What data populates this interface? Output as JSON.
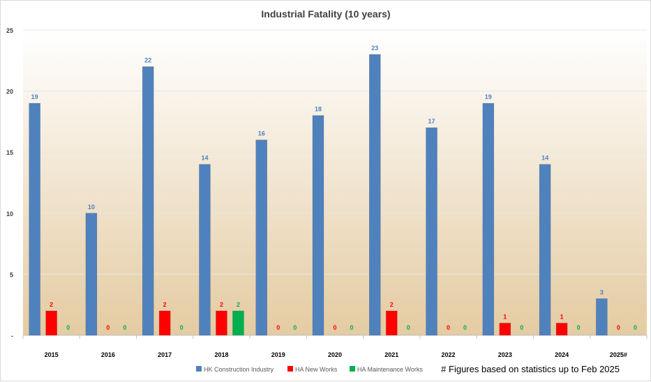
{
  "chart_data": {
    "type": "bar",
    "title": "Industrial Fatality (10 years)",
    "xlabel": "",
    "ylabel": "",
    "ylim": [
      0,
      25
    ],
    "yticks": [
      "-",
      "5",
      "10",
      "15",
      "20",
      "25"
    ],
    "grid": true,
    "legend_position": "bottom",
    "categories": [
      "2015",
      "2016",
      "2017",
      "2018",
      "2019",
      "2020",
      "2021",
      "2022",
      "2023",
      "2024",
      "2025#"
    ],
    "series": [
      {
        "name": "HK Construction Industry",
        "color": "#4f81bd",
        "label_color": "#4f81bd",
        "values": [
          19,
          10,
          22,
          14,
          16,
          18,
          23,
          17,
          19,
          14,
          3
        ],
        "labels": [
          "19",
          "10",
          "22",
          "14",
          "16",
          "18",
          "23",
          "17",
          "19",
          "14",
          "3"
        ]
      },
      {
        "name": "HA New Works",
        "color": "#ff0000",
        "label_color": "#ff0000",
        "values": [
          2,
          null,
          2,
          2,
          null,
          null,
          2,
          null,
          1,
          1,
          null
        ],
        "labels": [
          "2",
          "0",
          "2",
          "2",
          "0",
          "0",
          "2",
          "0",
          "1",
          "1",
          "0"
        ]
      },
      {
        "name": "HA Maintenance Works",
        "color": "#00b050",
        "label_color": "#00b050",
        "values": [
          null,
          null,
          null,
          2,
          null,
          null,
          null,
          null,
          null,
          null,
          null
        ],
        "labels": [
          "0",
          "0",
          "0",
          "2",
          "0",
          "0",
          "0",
          "0",
          "0",
          "0",
          "0"
        ]
      }
    ],
    "annotations": [
      "# Figures based on statistics up to Feb 2025"
    ]
  }
}
